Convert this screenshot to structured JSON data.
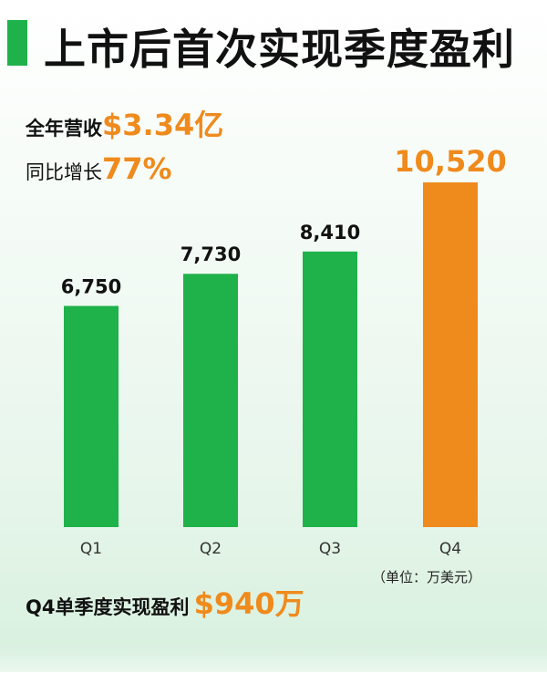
{
  "title": "上市后首次实现季度盈利",
  "revenue": {
    "label": "全年营收",
    "value": "$3.34亿"
  },
  "growth": {
    "label": "同比增长",
    "value": "77%"
  },
  "unit_note": "（单位：万美元）",
  "q4_profit": {
    "label": "Q4单季度实现盈利",
    "value": "$940万"
  },
  "colors": {
    "green": "#1fb24a",
    "orange": "#ef8a1c",
    "accent_bar": "#1fb24a"
  },
  "chart_data": {
    "type": "bar",
    "categories": [
      "Q1",
      "Q2",
      "Q3",
      "Q4"
    ],
    "values": [
      6750,
      7730,
      8410,
      10520
    ],
    "value_labels": [
      "6,750",
      "7,730",
      "8,410",
      "10,520"
    ],
    "highlight_index": 3,
    "ylim": [
      0,
      10520
    ],
    "grid": false,
    "legend": "none"
  }
}
